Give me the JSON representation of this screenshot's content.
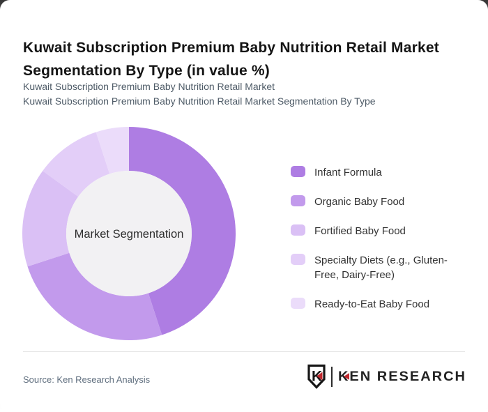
{
  "header": {
    "title": "Kuwait Subscription Premium Baby Nutrition Retail Market Segmentation By Type (in value %)",
    "subtitle_line1": "Kuwait Subscription Premium Baby Nutrition Retail Market",
    "subtitle_line2": "Kuwait Subscription Premium Baby Nutrition Retail Market Segmentation By Type"
  },
  "chart_data": {
    "type": "pie",
    "subtype": "donut",
    "title": "Kuwait Subscription Premium Baby Nutrition Retail Market Segmentation By Type (in value %)",
    "categories": [
      "Infant Formula",
      "Organic Baby Food",
      "Fortified Baby Food",
      "Specialty Diets (e.g., Gluten-Free, Dairy-Free)",
      "Ready-to-Eat Baby Food"
    ],
    "values": [
      45,
      25,
      15,
      10,
      5
    ],
    "unit": "%",
    "colors": [
      "#ae7de3",
      "#c29aec",
      "#dac0f5",
      "#e3cef8",
      "#ebdcfa"
    ],
    "start_angle_deg": 0,
    "direction": "clockwise",
    "inner_radius_ratio": 0.59,
    "center_label": "Market Segmentation",
    "center_fill": "#f2f1f3",
    "legend_position": "right",
    "data_labels": false
  },
  "footer": {
    "source": "Source: Ken Research Analysis",
    "brand": {
      "shield_letter": "K",
      "word_k": "K",
      "word_rest": "EN RESEARCH"
    }
  },
  "colors": {
    "title_text": "#141414",
    "subtitle_text": "#4e5b67",
    "legend_text": "#333333",
    "source_text": "#5f6e7e",
    "divider": "#e3e3e3",
    "brand_dark": "#232323",
    "brand_red": "#c1272d",
    "card_bg": "#ffffff"
  }
}
